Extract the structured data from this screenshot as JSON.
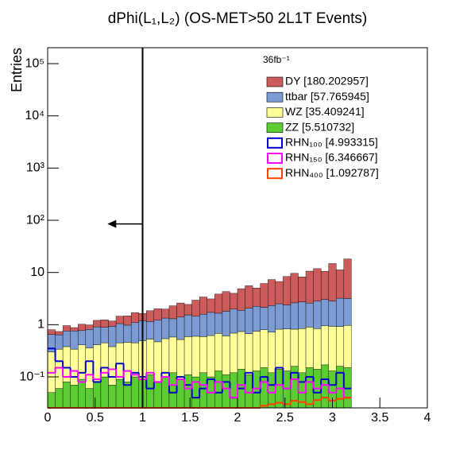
{
  "chart_data": {
    "type": "stacked-histogram",
    "title": "dPhi(L₁,L₂) (OS-MET>50 2L1T Events)",
    "y_label": "Entries",
    "legend_header": "36fb⁻¹",
    "log_y": true,
    "xlim": [
      0,
      4
    ],
    "ylim": [
      0.0255,
      202000
    ],
    "xticks": [
      0,
      0.5,
      1,
      1.5,
      2,
      2.5,
      3,
      3.5,
      4
    ],
    "yticks": [
      {
        "value": 0.1,
        "label": "10⁻¹"
      },
      1,
      10,
      {
        "value": 100,
        "label": "10²"
      },
      {
        "value": 1000,
        "label": "10³"
      },
      {
        "value": 10000,
        "label": "10⁴"
      },
      {
        "value": 100000,
        "label": "10⁵"
      }
    ],
    "bins": [
      0,
      0.08,
      0.16,
      0.24,
      0.32,
      0.4,
      0.48,
      0.56,
      0.64,
      0.72,
      0.8,
      0.88,
      0.96,
      1.04,
      1.12,
      1.2,
      1.28,
      1.36,
      1.44,
      1.52,
      1.6,
      1.68,
      1.76,
      1.84,
      1.92,
      2,
      2.08,
      2.16,
      2.24,
      2.32,
      2.4,
      2.48,
      2.56,
      2.64,
      2.72,
      2.8,
      2.88,
      2.96,
      3.04,
      3.12,
      3.2
    ],
    "cut_line": {
      "x": 1,
      "arrow_y": 85,
      "arrow_to": 0.63
    },
    "series": [
      {
        "name": "ZZ [5.510732]",
        "color": "#5ccc33",
        "draw": "stack",
        "values": [
          0.05,
          0.06,
          0.08,
          0.07,
          0.09,
          0.06,
          0.08,
          0.1,
          0.07,
          0.09,
          0.08,
          0.1,
          0.09,
          0.11,
          0.08,
          0.1,
          0.12,
          0.09,
          0.11,
          0.1,
          0.12,
          0.1,
          0.13,
          0.11,
          0.12,
          0.14,
          0.11,
          0.13,
          0.15,
          0.12,
          0.14,
          0.13,
          0.16,
          0.12,
          0.15,
          0.14,
          0.17,
          0.13,
          0.16,
          0.15
        ]
      },
      {
        "name": "WZ [35.409241]",
        "color": "#ffff99",
        "draw": "stack",
        "values": [
          0.25,
          0.28,
          0.3,
          0.27,
          0.32,
          0.3,
          0.33,
          0.35,
          0.31,
          0.36,
          0.38,
          0.35,
          0.4,
          0.42,
          0.39,
          0.44,
          0.46,
          0.43,
          0.48,
          0.5,
          0.47,
          0.52,
          0.55,
          0.5,
          0.57,
          0.6,
          0.56,
          0.62,
          0.65,
          0.6,
          0.68,
          0.7,
          0.66,
          0.72,
          0.75,
          0.7,
          0.78,
          0.8,
          0.76,
          0.82
        ]
      },
      {
        "name": "ttbar [57.765945]",
        "color": "#7b9bd2",
        "draw": "stack",
        "values": [
          0.35,
          0.3,
          0.38,
          0.42,
          0.36,
          0.45,
          0.5,
          0.44,
          0.55,
          0.6,
          0.52,
          0.65,
          0.7,
          0.62,
          0.75,
          0.8,
          0.72,
          0.88,
          0.95,
          0.85,
          1.0,
          1.1,
          0.98,
          1.2,
          1.3,
          1.15,
          1.4,
          1.5,
          1.35,
          1.6,
          1.7,
          1.55,
          1.8,
          1.9,
          1.7,
          2.0,
          2.1,
          1.9,
          2.3,
          2.2
        ]
      },
      {
        "name": "DY [180.202957]",
        "color": "#cc5c5c",
        "draw": "stack",
        "values": [
          0.15,
          0.1,
          0.2,
          0.12,
          0.25,
          0.18,
          0.3,
          0.35,
          0.25,
          0.4,
          0.5,
          0.6,
          0.45,
          0.7,
          0.8,
          0.65,
          1.0,
          1.2,
          0.9,
          1.5,
          1.8,
          1.4,
          2.2,
          2.5,
          2.0,
          3.0,
          3.5,
          2.8,
          4.0,
          5.0,
          4.2,
          6.0,
          7.0,
          5.5,
          8.0,
          9.0,
          7.5,
          12.0,
          8.0,
          15.0
        ]
      },
      {
        "name": "RHN₁₀₀ [4.993315]",
        "color": "#0000cc",
        "draw": "line",
        "values": [
          0.35,
          0.2,
          0.15,
          0.1,
          0.12,
          0.2,
          0.08,
          0.15,
          0.1,
          0.18,
          0.07,
          0.12,
          0.1,
          0.06,
          0.08,
          0.12,
          0.05,
          0.1,
          0.07,
          0.04,
          0.06,
          0.09,
          0.05,
          0.08,
          0.04,
          0.06,
          0.12,
          0.05,
          0.1,
          0.07,
          0.15,
          0.06,
          0.12,
          0.08,
          0.1,
          0.05,
          0.09,
          0.07,
          0.12,
          0.06
        ]
      },
      {
        "name": "RHN₁₅₀ [6.346667]",
        "color": "#ff00ff",
        "draw": "line",
        "values": [
          0.12,
          0.15,
          0.1,
          0.13,
          0.08,
          0.11,
          0.09,
          0.12,
          0.14,
          0.1,
          0.13,
          0.11,
          0.09,
          0.12,
          0.08,
          0.1,
          0.07,
          0.09,
          0.06,
          0.08,
          0.07,
          0.05,
          0.08,
          0.06,
          0.04,
          0.07,
          0.05,
          0.06,
          0.08,
          0.05,
          0.07,
          0.06,
          0.09,
          0.05,
          0.08,
          0.06,
          0.07,
          0.05,
          0.06,
          0.04
        ]
      },
      {
        "name": "RHN₄₀₀ [1.092787]",
        "color": "#ff4000",
        "draw": "line",
        "values": [
          0,
          0,
          0,
          0,
          0,
          0,
          0,
          0,
          0,
          0,
          0,
          0,
          0,
          0,
          0,
          0,
          0,
          0,
          0,
          0,
          0,
          0,
          0,
          0,
          0,
          0,
          0,
          0,
          0.028,
          0.03,
          0.032,
          0.03,
          0.035,
          0.033,
          0.03,
          0.036,
          0.04,
          0.035,
          0.038,
          0.04
        ]
      }
    ],
    "legend_order": [
      3,
      2,
      1,
      0,
      4,
      5,
      6
    ]
  }
}
